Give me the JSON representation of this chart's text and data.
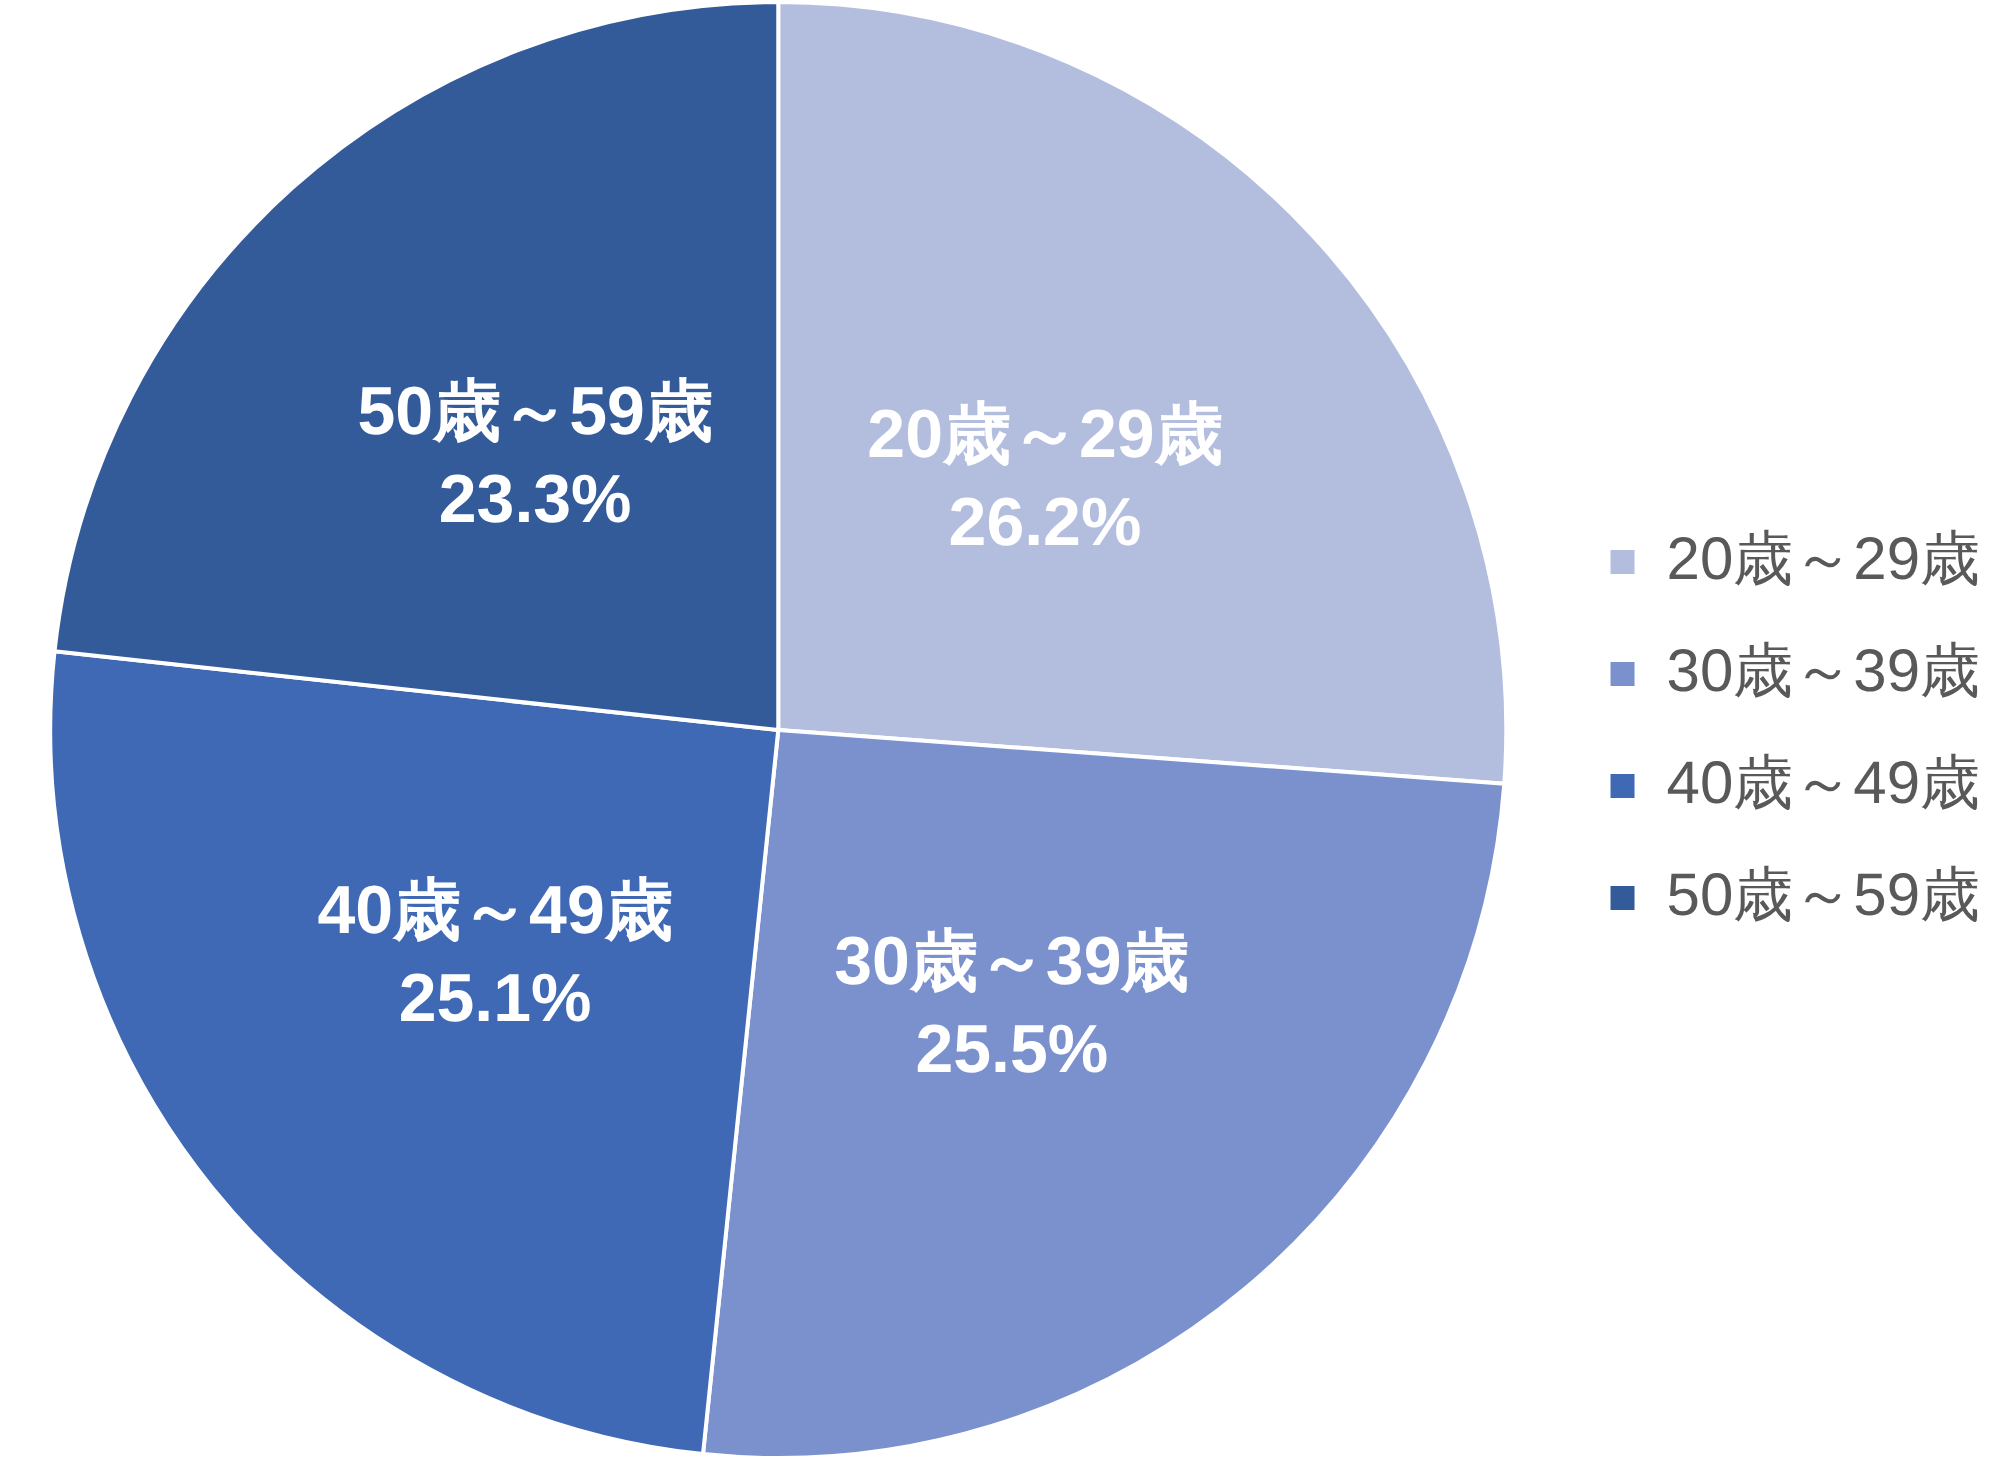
{
  "chart_data": {
    "type": "pie",
    "categories": [
      "20歳～29歳",
      "30歳～39歳",
      "40歳～49歳",
      "50歳～59歳"
    ],
    "values": [
      26.2,
      25.5,
      25.1,
      23.3
    ],
    "value_labels": [
      "26.2%",
      "25.5%",
      "25.1%",
      "23.3%"
    ],
    "colors": [
      "#b3bedf",
      "#7a91ce",
      "#3f69b5",
      "#335a99"
    ],
    "legend": "right"
  }
}
